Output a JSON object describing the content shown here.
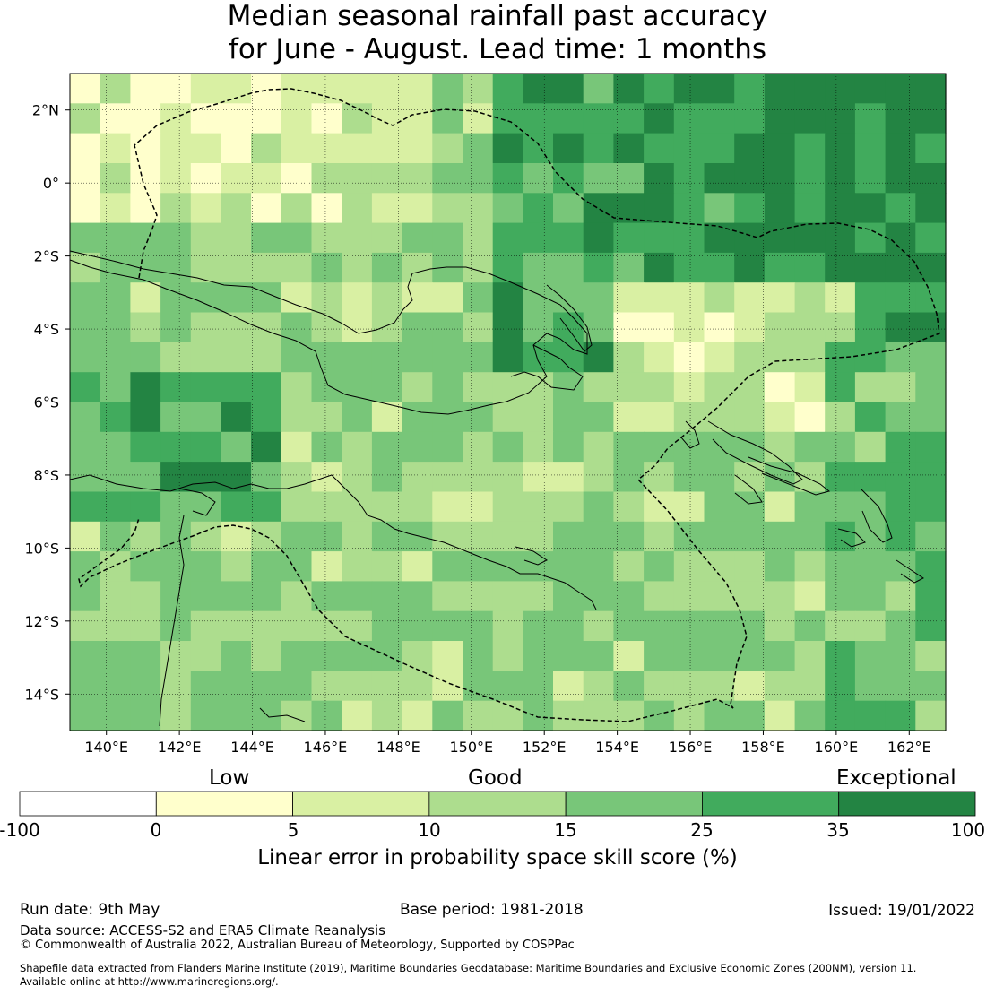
{
  "title": {
    "line1": "Median seasonal rainfall past accuracy",
    "line2": "for June - August. Lead time: 1 months"
  },
  "map": {
    "lon_range": [
      139,
      163
    ],
    "lat_range": [
      -15,
      3
    ],
    "x_ticks": [
      {
        "value": 140,
        "label": "140°E"
      },
      {
        "value": 142,
        "label": "142°E"
      },
      {
        "value": 144,
        "label": "144°E"
      },
      {
        "value": 146,
        "label": "146°E"
      },
      {
        "value": 148,
        "label": "148°E"
      },
      {
        "value": 150,
        "label": "150°E"
      },
      {
        "value": 152,
        "label": "152°E"
      },
      {
        "value": 154,
        "label": "154°E"
      },
      {
        "value": 156,
        "label": "156°E"
      },
      {
        "value": 158,
        "label": "158°E"
      },
      {
        "value": 160,
        "label": "160°E"
      },
      {
        "value": 162,
        "label": "162°E"
      }
    ],
    "y_ticks": [
      {
        "value": 2,
        "label": "2°N"
      },
      {
        "value": 0,
        "label": "0°"
      },
      {
        "value": -2,
        "label": "2°S"
      },
      {
        "value": -4,
        "label": "4°S"
      },
      {
        "value": -6,
        "label": "6°S"
      },
      {
        "value": -8,
        "label": "8°S"
      },
      {
        "value": -10,
        "label": "10°S"
      },
      {
        "value": -12,
        "label": "12°S"
      },
      {
        "value": -14,
        "label": "14°S"
      }
    ],
    "grid": true,
    "colors": {
      "land_outline": "#000000",
      "eez_boundary": "#000000"
    }
  },
  "colorbar": {
    "category_labels": {
      "low": "Low",
      "good": "Good",
      "exceptional": "Exceptional"
    },
    "bins": [
      {
        "from": -100,
        "to": 0,
        "color": "#ffffff"
      },
      {
        "from": 0,
        "to": 5,
        "color": "#ffffcc"
      },
      {
        "from": 5,
        "to": 10,
        "color": "#d9f0a3"
      },
      {
        "from": 10,
        "to": 15,
        "color": "#addd8e"
      },
      {
        "from": 15,
        "to": 25,
        "color": "#78c679"
      },
      {
        "from": 25,
        "to": 35,
        "color": "#41ab5d"
      },
      {
        "from": 35,
        "to": 100,
        "color": "#238443"
      }
    ],
    "tick_labels": [
      "-100",
      "0",
      "5",
      "10",
      "15",
      "25",
      "35",
      "100"
    ],
    "label": "Linear error in probability space skill score (%)"
  },
  "footer": {
    "run_date": "Run date: 9th May",
    "base_period": "Base period: 1981-2018",
    "issued": "Issued: 19/01/2022",
    "data_source": "Data source: ACCESS-S2 and ERA5 Climate Reanalysis",
    "copyright": "© Commonwealth of Australia 2022, Australian Bureau of Meteorology, Supported by COSPPac",
    "shapefile_line1": "Shapefile data extracted from Flanders Marine Institute (2019), Maritime Boundaries Geodatabase: Maritime Boundaries and Exclusive Economic Zones (200NM), version 11.",
    "shapefile_line2": "Available online at http://www.marineregions.org/."
  }
}
